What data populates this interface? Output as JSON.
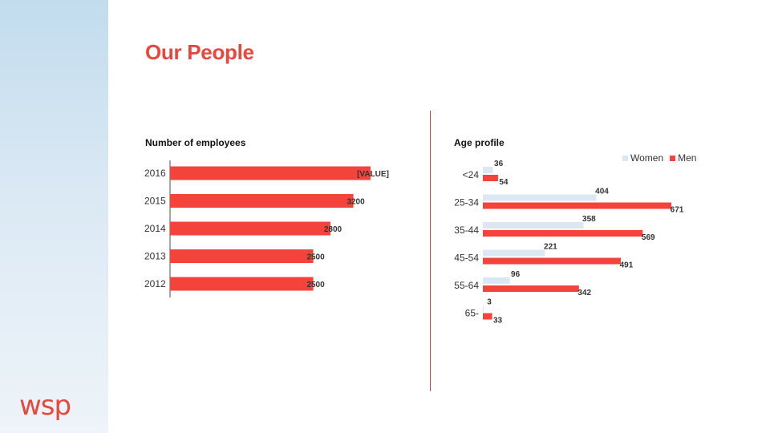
{
  "page": {
    "title": "Our People",
    "logo_text": "wsp",
    "colors": {
      "accent": "#f4433b",
      "women": "#dbe7f2",
      "title": "#e8473c"
    }
  },
  "chart_data": [
    {
      "type": "bar",
      "orientation": "horizontal",
      "title": "Number of employees",
      "categories": [
        "2016",
        "2015",
        "2014",
        "2013",
        "2012"
      ],
      "values": [
        3500,
        3200,
        2800,
        2500,
        2500
      ],
      "data_labels": [
        "[VALUE]",
        "3200",
        "2800",
        "2500",
        "2500"
      ],
      "xlim": [
        0,
        4000
      ]
    },
    {
      "type": "bar",
      "orientation": "horizontal",
      "title": "Age profile",
      "categories": [
        "<24",
        "25-34",
        "35-44",
        "45-54",
        "55-64",
        "65-"
      ],
      "series": [
        {
          "name": "Women",
          "values": [
            36,
            404,
            358,
            221,
            96,
            3
          ],
          "color": "#dbe7f2"
        },
        {
          "name": "Men",
          "values": [
            54,
            671,
            569,
            491,
            342,
            33
          ],
          "color": "#f4433b"
        }
      ],
      "legend": "top-right",
      "xlim": [
        0,
        680
      ]
    }
  ]
}
